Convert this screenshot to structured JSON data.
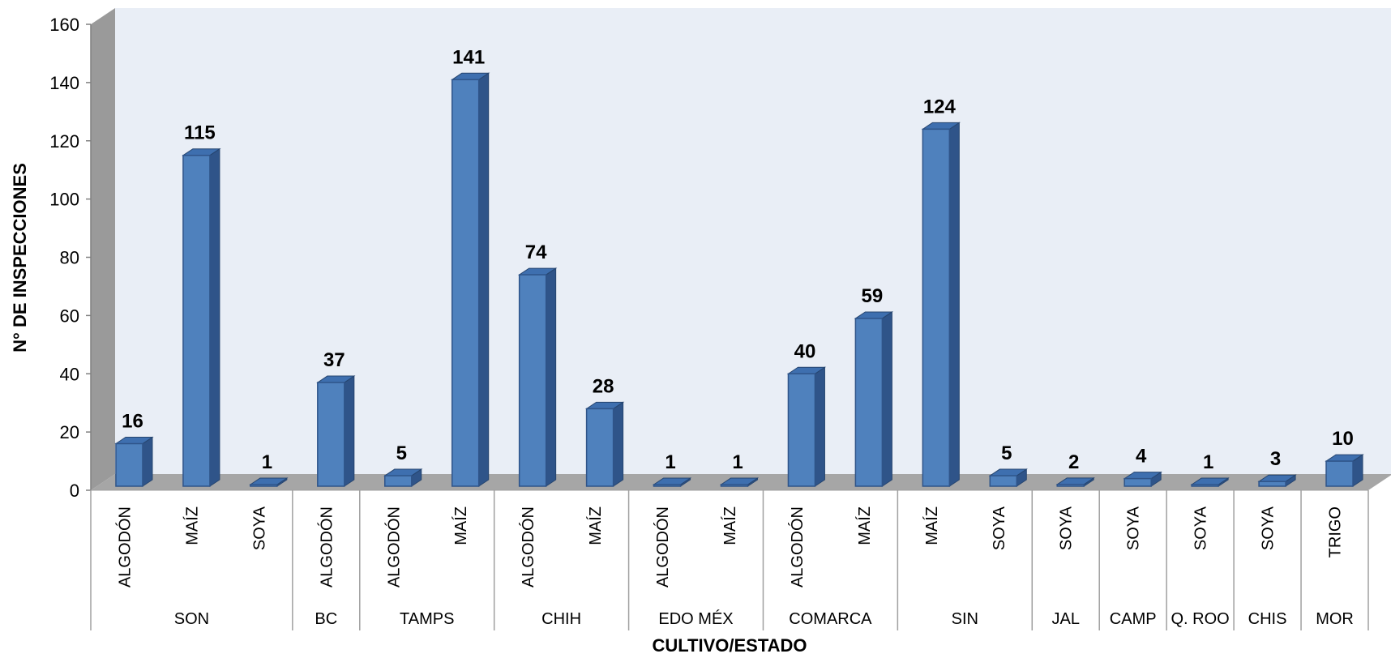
{
  "chart_data": {
    "type": "bar",
    "ylabel": "N° DE INSPECCIONES",
    "xlabel": "CULTIVO/ESTADO",
    "ylim": [
      0,
      160
    ],
    "yticks": [
      0,
      20,
      40,
      60,
      80,
      100,
      120,
      140,
      160
    ],
    "grid": false,
    "legend": "none",
    "bar_color": "#4F81BD",
    "groups": [
      {
        "name": "SON",
        "items": [
          {
            "category": "ALGODÓN",
            "value": 16
          },
          {
            "category": "MAÍZ",
            "value": 115
          },
          {
            "category": "SOYA",
            "value": 1
          }
        ]
      },
      {
        "name": "BC",
        "items": [
          {
            "category": "ALGODÓN",
            "value": 37
          }
        ]
      },
      {
        "name": "TAMPS",
        "items": [
          {
            "category": "ALGODÓN",
            "value": 5
          },
          {
            "category": "MAÍZ",
            "value": 141
          }
        ]
      },
      {
        "name": "CHIH",
        "items": [
          {
            "category": "ALGODÓN",
            "value": 74
          },
          {
            "category": "MAÍZ",
            "value": 28
          }
        ]
      },
      {
        "name": "EDO MÉX",
        "items": [
          {
            "category": "ALGODÓN",
            "value": 1
          },
          {
            "category": "MAÍZ",
            "value": 1
          }
        ]
      },
      {
        "name": "COMARCA",
        "items": [
          {
            "category": "ALGODÓN",
            "value": 40
          },
          {
            "category": "MAÍZ",
            "value": 59
          }
        ]
      },
      {
        "name": "SIN",
        "items": [
          {
            "category": "MAÍZ",
            "value": 124
          },
          {
            "category": "SOYA",
            "value": 5
          }
        ]
      },
      {
        "name": "JAL",
        "items": [
          {
            "category": "SOYA",
            "value": 2
          }
        ]
      },
      {
        "name": "CAMP",
        "items": [
          {
            "category": "SOYA",
            "value": 4
          }
        ]
      },
      {
        "name": "Q. ROO",
        "items": [
          {
            "category": "SOYA",
            "value": 1
          }
        ]
      },
      {
        "name": "CHIS",
        "items": [
          {
            "category": "SOYA",
            "value": 3
          }
        ]
      },
      {
        "name": "MOR",
        "items": [
          {
            "category": "TRIGO",
            "value": 10
          }
        ]
      }
    ]
  }
}
